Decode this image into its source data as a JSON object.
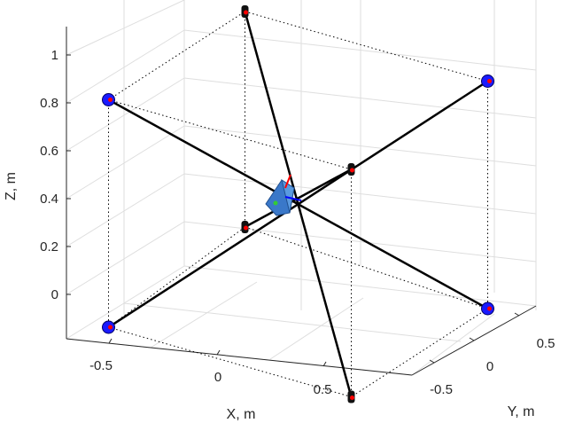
{
  "figure": {
    "axis_labels": {
      "x": "X, m",
      "y": "Y, m",
      "z": "Z, m"
    },
    "z_ticks": [
      "0",
      "0.2",
      "0.4",
      "0.6",
      "0.8",
      "1"
    ],
    "x_ticks": [
      "-0.5",
      "0",
      "0.5"
    ],
    "y_ticks": [
      "-0.5",
      "0",
      "0.5"
    ]
  },
  "chart_data": {
    "type": "3d-line",
    "xlabel": "X, m",
    "ylabel": "Y, m",
    "zlabel": "Z, m",
    "zlim": [
      -0.15,
      1.1
    ],
    "grid": true,
    "cable_color": "#000000",
    "anchor_color": "#1a1aff",
    "endpoint_color": "#ff0000",
    "effector_color": "#3a78c9",
    "anchors": [
      {
        "id": "A1",
        "x": -0.6,
        "y": -0.6,
        "z": 0.95
      },
      {
        "id": "A2",
        "x": -0.6,
        "y": 0.6,
        "z": 1.1
      },
      {
        "id": "A3",
        "x": 0.6,
        "y": 0.6,
        "z": 0.95
      },
      {
        "id": "A4",
        "x": 0.6,
        "y": -0.6,
        "z": 0.8
      },
      {
        "id": "A5",
        "x": -0.6,
        "y": -0.6,
        "z": 0.0
      },
      {
        "id": "A6",
        "x": -0.6,
        "y": 0.6,
        "z": 0.2
      },
      {
        "id": "A7",
        "x": 0.6,
        "y": 0.6,
        "z": 0.0
      },
      {
        "id": "A8",
        "x": 0.6,
        "y": -0.6,
        "z": -0.15
      }
    ],
    "cables": [
      {
        "from": "A1",
        "to": "A7"
      },
      {
        "from": "A2",
        "to": "A8"
      },
      {
        "from": "A3",
        "to": "A5"
      },
      {
        "from": "A4",
        "to": "A6"
      }
    ]
  }
}
